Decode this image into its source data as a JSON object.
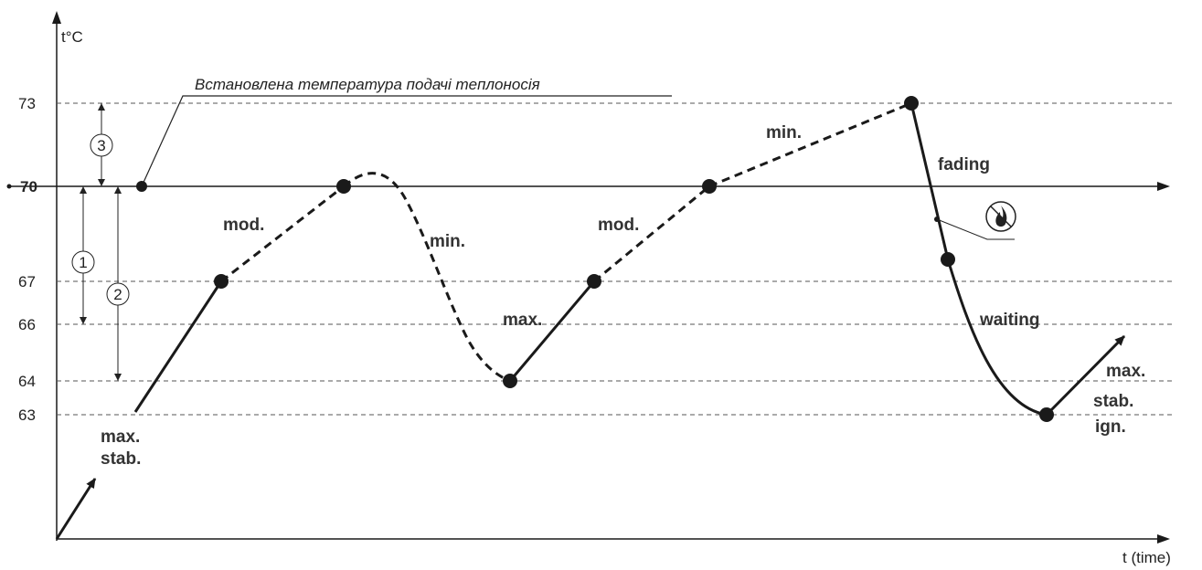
{
  "y_axis_label": "t°C",
  "x_axis_label": "t (time)",
  "y_ticks": [
    "73",
    "70",
    "67",
    "66",
    "64",
    "63"
  ],
  "setpoint_note": "Встановлена температура подачі теплоносія",
  "hysteresis_markers": [
    "1",
    "2",
    "3"
  ],
  "phase_labels": {
    "start_max": "max.",
    "start_stab": "stab.",
    "mod1": "mod.",
    "min1": "min.",
    "max2": "max.",
    "mod2": "mod.",
    "min2": "min.",
    "fading": "fading",
    "waiting": "waiting",
    "end_max": "max.",
    "end_stab": "stab.",
    "end_ign": "ign."
  },
  "icons": {
    "no_flame": "no-flame-icon"
  },
  "colors": {
    "line": "#1a1a1a",
    "grid": "#555555"
  }
}
